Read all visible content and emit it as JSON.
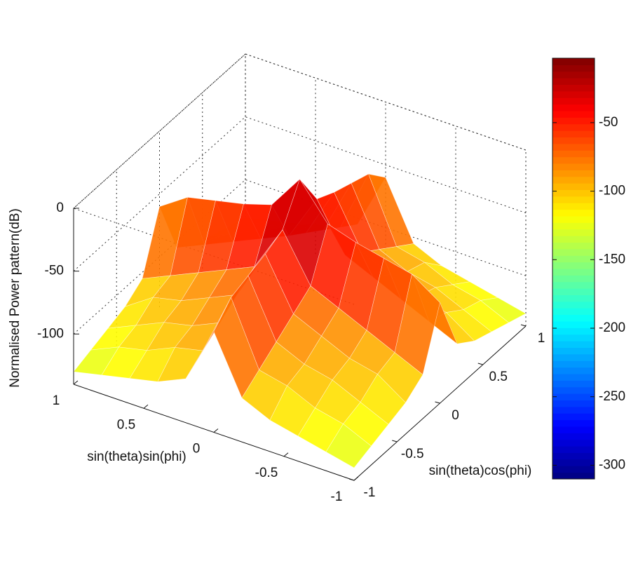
{
  "chart_data": {
    "type": "surface",
    "xlabel": "sin(theta)sin(phi)",
    "ylabel": "sin(theta)cos(phi)",
    "zlabel": "Normalised Power pattern(dB)",
    "x": [
      -1,
      -0.8,
      -0.6,
      -0.4,
      -0.2,
      0,
      0.2,
      0.4,
      0.6,
      0.8,
      1
    ],
    "y": [
      -1,
      -0.8,
      -0.6,
      -0.4,
      -0.2,
      0,
      0.2,
      0.4,
      0.6,
      0.8,
      1
    ],
    "z": [
      [
        -130,
        -125,
        -120,
        -115,
        -105,
        -60,
        -105,
        -115,
        -120,
        -125,
        -130
      ],
      [
        -125,
        -115,
        -110,
        -100,
        -95,
        -45,
        -95,
        -100,
        -110,
        -115,
        -125
      ],
      [
        -120,
        -110,
        -100,
        -95,
        -85,
        -40,
        -85,
        -95,
        -100,
        -110,
        -120
      ],
      [
        -115,
        -100,
        -95,
        -85,
        -75,
        -35,
        -75,
        -85,
        -95,
        -100,
        -115
      ],
      [
        -105,
        -95,
        -85,
        -75,
        -65,
        -28,
        -65,
        -75,
        -85,
        -95,
        -105
      ],
      [
        -60,
        -45,
        -40,
        -35,
        -28,
        0,
        -28,
        -35,
        -40,
        -45,
        -60
      ],
      [
        -105,
        -95,
        -85,
        -75,
        -65,
        -28,
        -65,
        -75,
        -85,
        -95,
        -105
      ],
      [
        -115,
        -100,
        -95,
        -85,
        -75,
        -35,
        -75,
        -85,
        -95,
        -100,
        -115
      ],
      [
        -120,
        -110,
        -100,
        -95,
        -85,
        -40,
        -85,
        -95,
        -100,
        -110,
        -120
      ],
      [
        -125,
        -115,
        -110,
        -100,
        -95,
        -45,
        -95,
        -100,
        -110,
        -115,
        -125
      ],
      [
        -130,
        -125,
        -120,
        -115,
        -105,
        -60,
        -105,
        -115,
        -120,
        -125,
        -130
      ]
    ],
    "xlim": [
      -1,
      1
    ],
    "ylim": [
      -1,
      1
    ],
    "zlim": [
      -140,
      0
    ],
    "xticks": [
      -1,
      -0.5,
      0,
      0.5,
      1
    ],
    "yticks": [
      -1,
      -0.5,
      0,
      0.5,
      1
    ],
    "zticks": [
      -100,
      -50,
      0
    ],
    "grid": true,
    "colormap": "jet",
    "clim": [
      -310,
      -3
    ],
    "colorbar_ticks": [
      -300,
      -250,
      -200,
      -150,
      -100,
      -50
    ]
  }
}
